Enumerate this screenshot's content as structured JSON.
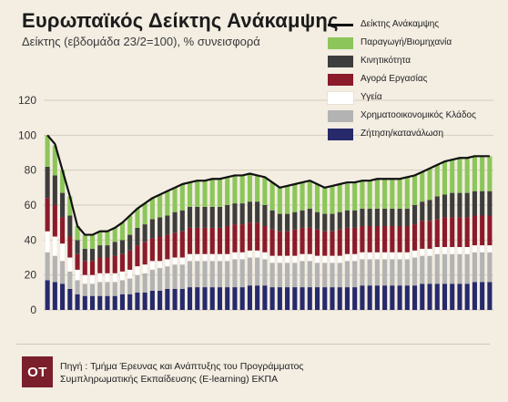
{
  "header": {
    "title": "Ευρωπαϊκός Δείκτης Ανάκαμψης",
    "subtitle": "Δείκτης (εβδομάδα 23/2=100), % συνεισφορά"
  },
  "footer": {
    "logo_text": "ΟΤ",
    "source_line1": "Πηγή : Τμήμα Έρευνας και Ανάπτυξης του Προγράμματος",
    "source_line2": "Συμπληρωματικής Εκπαίδευσης (E-learning) ΕΚΠΑ"
  },
  "colors": {
    "background": "#f3ede2",
    "line": "#111111",
    "grid": "#d6cdbd"
  },
  "chart_data": {
    "type": "bar",
    "stacked": true,
    "weeks": 60,
    "ylim": [
      0,
      120
    ],
    "yticks": [
      0,
      20,
      40,
      60,
      80,
      100,
      120
    ],
    "grid": true,
    "legend_position": "top-right",
    "line_series": {
      "name": "Δείκτης Ανάκαμψης",
      "color": "#111111",
      "values": [
        100,
        95,
        80,
        65,
        48,
        43,
        43,
        45,
        45,
        47,
        50,
        54,
        58,
        61,
        64,
        66,
        68,
        70,
        72,
        73,
        74,
        74,
        75,
        75,
        76,
        77,
        77,
        78,
        77,
        76,
        73,
        70,
        71,
        72,
        73,
        74,
        72,
        70,
        71,
        72,
        73,
        73,
        74,
        74,
        75,
        75,
        75,
        75,
        76,
        77,
        79,
        81,
        83,
        85,
        86,
        87,
        87,
        88,
        88,
        88
      ]
    },
    "series": [
      {
        "name": "Ζήτηση/κατανάλωση",
        "color": "#262a6b",
        "values": [
          17,
          16,
          15,
          12,
          9,
          8,
          8,
          8,
          8,
          8,
          9,
          9,
          10,
          10,
          11,
          11,
          12,
          12,
          12,
          13,
          13,
          13,
          13,
          13,
          13,
          13,
          13,
          14,
          14,
          14,
          13,
          13,
          13,
          13,
          13,
          13,
          13,
          13,
          13,
          13,
          13,
          13,
          14,
          14,
          14,
          14,
          14,
          14,
          14,
          14,
          15,
          15,
          15,
          15,
          15,
          15,
          15,
          16,
          16,
          16
        ]
      },
      {
        "name": "Χρηματοοικονομικός Κλάδος",
        "color": "#b3b3b3",
        "values": [
          16,
          15,
          13,
          10,
          8,
          7,
          7,
          8,
          8,
          8,
          8,
          9,
          10,
          11,
          12,
          13,
          13,
          14,
          14,
          15,
          15,
          15,
          15,
          15,
          15,
          16,
          16,
          16,
          16,
          15,
          14,
          14,
          14,
          14,
          15,
          15,
          14,
          14,
          14,
          14,
          15,
          15,
          15,
          15,
          15,
          15,
          15,
          15,
          15,
          16,
          16,
          16,
          17,
          17,
          17,
          17,
          17,
          17,
          17,
          17
        ]
      },
      {
        "name": "Υγεία",
        "color": "#ffffff",
        "values": [
          12,
          11,
          10,
          8,
          6,
          5,
          5,
          5,
          5,
          5,
          5,
          5,
          5,
          5,
          5,
          4,
          4,
          4,
          4,
          4,
          4,
          4,
          4,
          4,
          4,
          4,
          4,
          4,
          4,
          4,
          4,
          4,
          4,
          4,
          4,
          4,
          4,
          4,
          4,
          4,
          4,
          4,
          4,
          4,
          4,
          4,
          4,
          4,
          4,
          4,
          4,
          4,
          4,
          4,
          4,
          4,
          4,
          4,
          4,
          4
        ]
      },
      {
        "name": "Αγορά Εργασίας",
        "color": "#8b1a2b",
        "values": [
          19,
          18,
          15,
          12,
          9,
          8,
          8,
          9,
          9,
          10,
          10,
          11,
          12,
          13,
          13,
          14,
          14,
          14,
          15,
          15,
          15,
          15,
          15,
          15,
          16,
          16,
          16,
          16,
          16,
          15,
          15,
          14,
          14,
          15,
          15,
          15,
          15,
          14,
          14,
          15,
          15,
          15,
          15,
          15,
          15,
          15,
          15,
          15,
          15,
          15,
          16,
          16,
          16,
          17,
          17,
          17,
          17,
          17,
          17,
          17
        ]
      },
      {
        "name": "Κινητικότητα",
        "color": "#3d3d3d",
        "values": [
          18,
          17,
          14,
          12,
          8,
          7,
          7,
          7,
          7,
          8,
          8,
          9,
          10,
          10,
          11,
          11,
          11,
          12,
          12,
          12,
          12,
          12,
          12,
          12,
          12,
          12,
          12,
          12,
          12,
          12,
          11,
          10,
          10,
          10,
          10,
          11,
          10,
          10,
          10,
          10,
          10,
          10,
          10,
          10,
          10,
          10,
          10,
          10,
          10,
          11,
          11,
          12,
          13,
          13,
          14,
          14,
          14,
          14,
          14,
          14
        ]
      },
      {
        "name": "Παραγωγή/Βιομηχανία",
        "color": "#8cc65a",
        "values": [
          18,
          17,
          13,
          11,
          8,
          8,
          8,
          8,
          8,
          8,
          10,
          11,
          11,
          12,
          12,
          13,
          14,
          14,
          15,
          14,
          15,
          15,
          16,
          16,
          16,
          16,
          16,
          16,
          15,
          16,
          16,
          15,
          16,
          16,
          16,
          16,
          16,
          15,
          16,
          16,
          16,
          16,
          16,
          16,
          17,
          17,
          17,
          17,
          18,
          17,
          17,
          18,
          18,
          19,
          19,
          20,
          20,
          20,
          20,
          20
        ]
      }
    ],
    "legend_order": [
      "Δείκτης Ανάκαμψης",
      "Παραγωγή/Βιομηχανία",
      "Κινητικότητα",
      "Αγορά Εργασίας",
      "Υγεία",
      "Χρηματοοικονομικός Κλάδος",
      "Ζήτηση/κατανάλωση"
    ]
  }
}
